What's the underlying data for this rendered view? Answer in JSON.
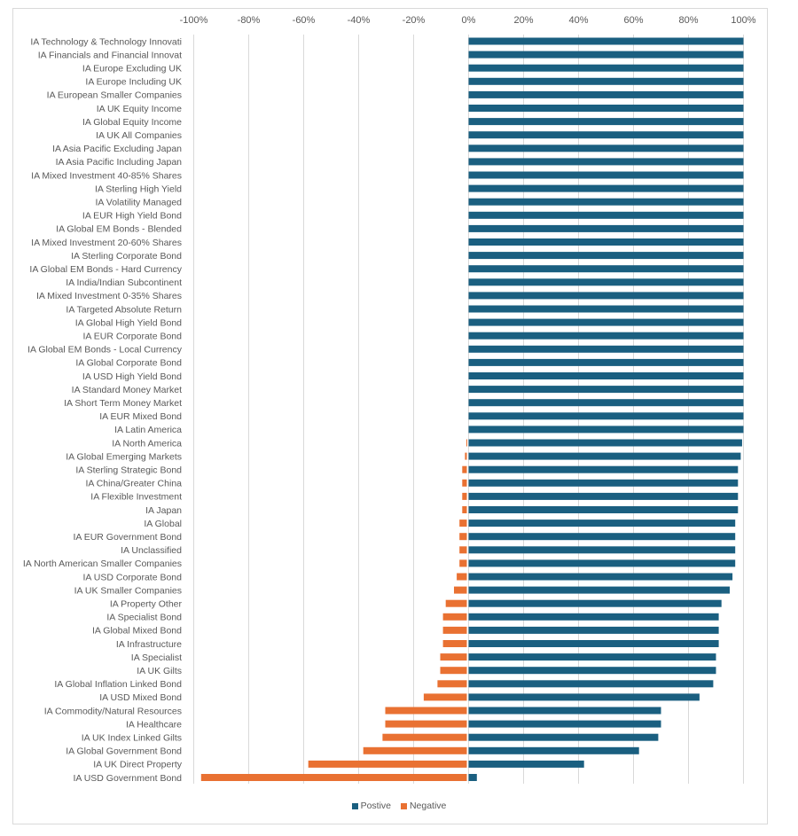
{
  "chart_data": {
    "type": "bar",
    "orientation": "horizontal",
    "stacked": true,
    "title": "",
    "xlabel": "",
    "ylabel": "",
    "xlim": [
      -100,
      100
    ],
    "x_ticks": [
      -100,
      -80,
      -60,
      -40,
      -20,
      0,
      20,
      40,
      60,
      80,
      100
    ],
    "x_tick_labels": [
      "-100%",
      "-80%",
      "-60%",
      "-40%",
      "-20%",
      "0%",
      "20%",
      "40%",
      "60%",
      "80%",
      "100%"
    ],
    "x_axis_position": "top",
    "grid": true,
    "legend_position": "bottom",
    "categories": [
      "IA Technology & Technology Innovati",
      "IA Financials and Financial Innovat",
      "IA Europe Excluding UK",
      "IA Europe Including UK",
      "IA European Smaller Companies",
      "IA UK Equity Income",
      "IA Global Equity Income",
      "IA UK All Companies",
      "IA Asia Pacific Excluding Japan",
      "IA Asia Pacific Including Japan",
      "IA Mixed Investment 40-85% Shares",
      "IA Sterling High Yield",
      "IA Volatility Managed",
      "IA EUR High Yield Bond",
      "IA Global EM Bonds - Blended",
      "IA Mixed Investment 20-60% Shares",
      "IA Sterling Corporate Bond",
      "IA Global EM Bonds - Hard Currency",
      "IA India/Indian Subcontinent",
      "IA Mixed Investment 0-35% Shares",
      "IA Targeted Absolute Return",
      "IA Global High Yield Bond",
      "IA EUR Corporate Bond",
      "IA Global EM Bonds - Local Currency",
      "IA Global Corporate Bond",
      "IA USD High Yield Bond",
      "IA Standard Money Market",
      "IA Short Term Money Market",
      "IA EUR Mixed Bond",
      "IA Latin America",
      "IA North America",
      "IA Global Emerging Markets",
      "IA Sterling Strategic Bond",
      "IA China/Greater China",
      "IA Flexible Investment",
      "IA Japan",
      "IA Global",
      "IA EUR Government Bond",
      "IA Unclassified",
      "IA North American Smaller Companies",
      "IA USD Corporate Bond",
      "IA UK Smaller Companies",
      "IA Property Other",
      "IA Specialist Bond",
      "IA Global Mixed Bond",
      "IA Infrastructure",
      "IA Specialist",
      "IA UK Gilts",
      "IA Global Inflation Linked Bond",
      "IA USD Mixed Bond",
      "IA Commodity/Natural Resources",
      "IA Healthcare",
      "IA UK Index Linked Gilts",
      "IA Global Government Bond",
      "IA UK Direct Property",
      "IA USD Government Bond"
    ],
    "series": [
      {
        "name": "Postive",
        "color": "#1a5f80",
        "values": [
          100,
          100,
          100,
          100,
          100,
          100,
          100,
          100,
          100,
          100,
          100,
          100,
          100,
          100,
          100,
          100,
          100,
          100,
          100,
          100,
          100,
          100,
          100,
          100,
          100,
          100,
          100,
          100,
          100,
          100,
          99.5,
          99,
          98,
          98,
          98,
          98,
          97,
          97,
          97,
          97,
          96,
          95,
          92,
          91,
          91,
          91,
          90,
          90,
          89,
          84,
          70,
          70,
          69,
          62,
          42,
          3
        ]
      },
      {
        "name": "Negative",
        "color": "#e97132",
        "values": [
          0,
          0,
          0,
          0,
          0,
          0,
          0,
          0,
          0,
          0,
          0,
          0,
          0,
          0,
          0,
          0,
          0,
          0,
          0,
          0,
          0,
          0,
          0,
          0,
          0,
          0,
          0,
          0,
          0,
          0,
          -0.5,
          -1,
          -2,
          -2,
          -2,
          -2,
          -3,
          -3,
          -3,
          -3,
          -4,
          -5,
          -8,
          -9,
          -9,
          -9,
          -10,
          -10,
          -11,
          -16,
          -30,
          -30,
          -31,
          -38,
          -58,
          -97
        ]
      }
    ]
  }
}
